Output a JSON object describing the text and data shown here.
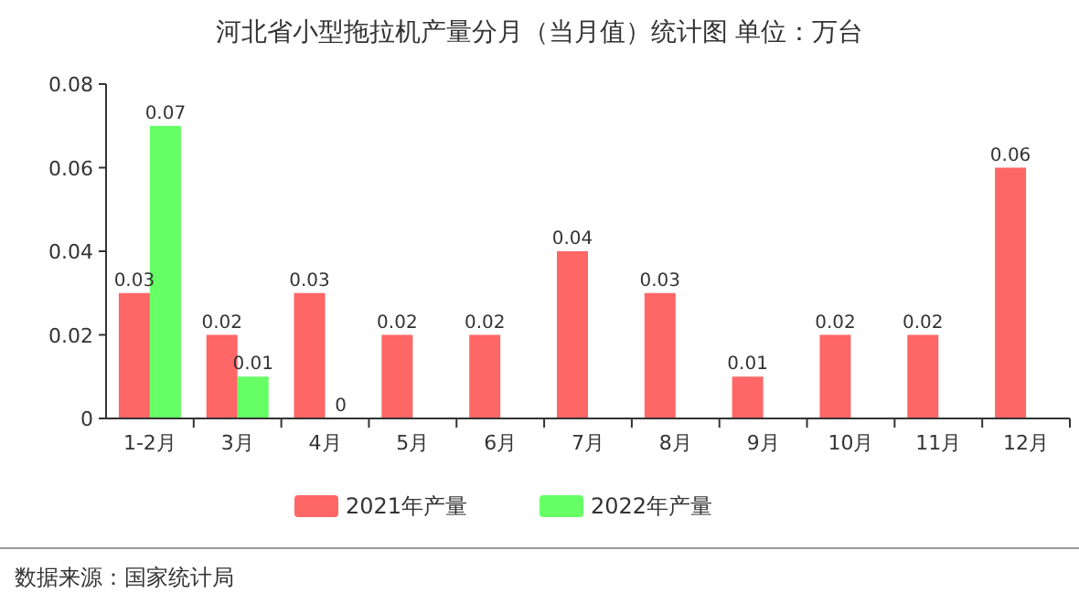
{
  "chart_data": {
    "type": "bar",
    "title": "河北省小型拖拉机产量分月（当月值）统计图 单位：万台",
    "categories": [
      "1-2月",
      "3月",
      "4月",
      "5月",
      "6月",
      "7月",
      "8月",
      "9月",
      "10月",
      "11月",
      "12月"
    ],
    "series": [
      {
        "name": "2021年产量",
        "color": "#ff6666",
        "values": [
          0.03,
          0.02,
          0.03,
          0.02,
          0.02,
          0.04,
          0.03,
          0.01,
          0.02,
          0.02,
          0.06
        ]
      },
      {
        "name": "2022年产量",
        "color": "#66ff66",
        "values": [
          0.07,
          0.01,
          0,
          null,
          null,
          null,
          null,
          null,
          null,
          null,
          null
        ]
      }
    ],
    "ylim": [
      0,
      0.08
    ],
    "yticks": [
      0,
      0.02,
      0.04,
      0.06,
      0.08
    ],
    "data_labels": true,
    "legend": "bottom",
    "grid": false,
    "annotations": [
      "数据来源：国家统计局"
    ]
  }
}
